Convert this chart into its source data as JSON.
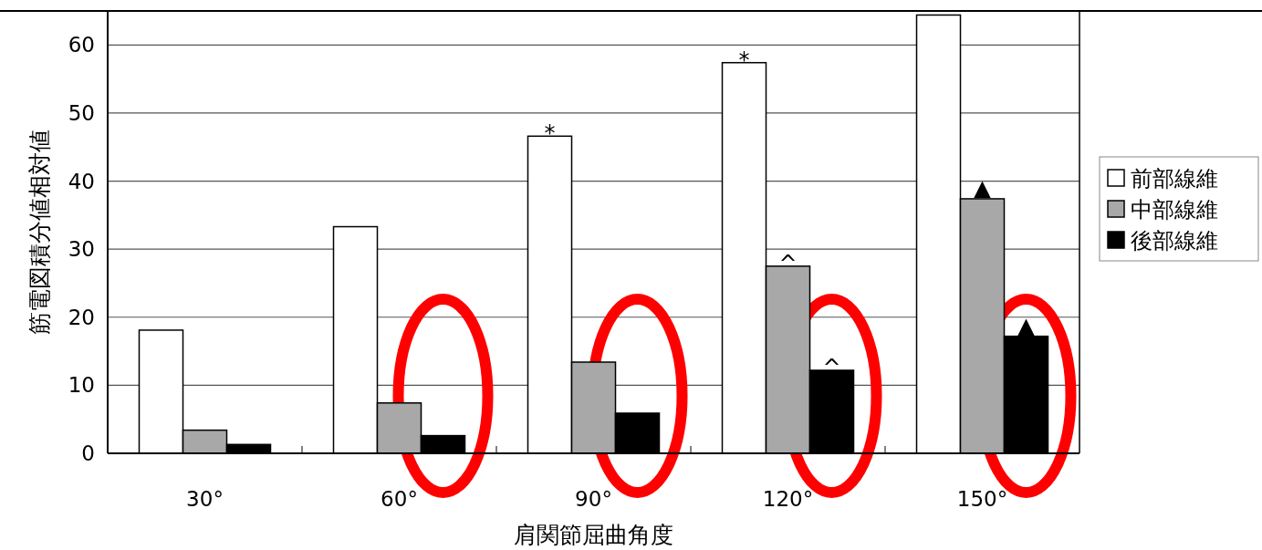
{
  "chart_data": {
    "type": "bar",
    "xlabel": "肩関節屈曲角度",
    "ylabel": "筋電図積分値相対値",
    "categories": [
      "30°",
      "60°",
      "90°",
      "120°",
      "150°"
    ],
    "series": [
      {
        "name": "前部線維",
        "color": "#ffffff",
        "values": [
          18.1,
          33.3,
          46.6,
          57.4,
          64.4
        ]
      },
      {
        "name": "中部線維",
        "color": "#a8a8a8",
        "values": [
          3.4,
          7.4,
          13.4,
          27.5,
          37.4
        ]
      },
      {
        "name": "後部線維",
        "color": "#000000",
        "values": [
          1.3,
          2.6,
          5.9,
          12.2,
          17.2
        ]
      }
    ],
    "ylim": [
      0,
      65
    ],
    "yticks": [
      0,
      10,
      20,
      30,
      40,
      50,
      60
    ],
    "grid": "y",
    "legend": "right",
    "annotations": [
      "*",
      "*",
      "^",
      "^",
      "▲",
      "▲"
    ]
  }
}
